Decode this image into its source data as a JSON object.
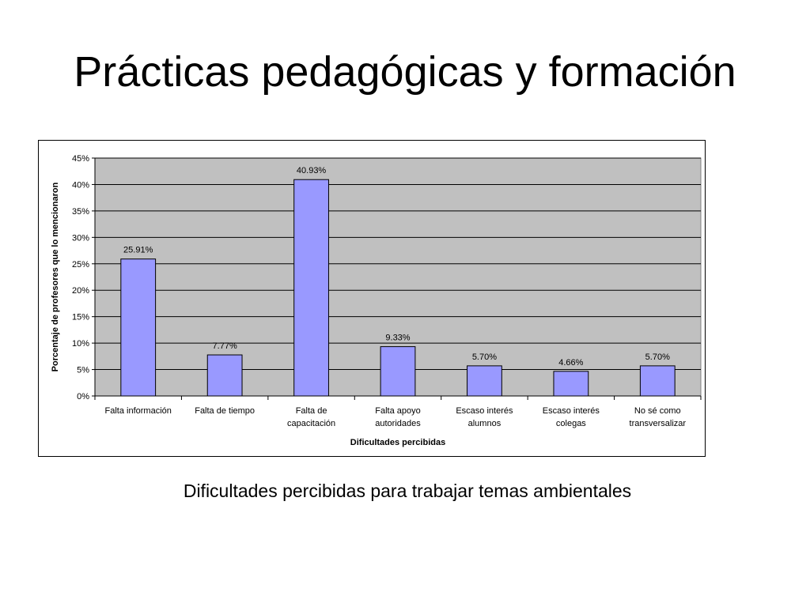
{
  "page": {
    "title": "Prácticas pedagógicas y formación",
    "caption": "Dificultades percibidas para trabajar temas ambientales"
  },
  "chart_data": {
    "type": "bar",
    "categories": [
      [
        "Falta información"
      ],
      [
        "Falta de tiempo"
      ],
      [
        "Falta de",
        "capacitación"
      ],
      [
        "Falta apoyo",
        "autoridades"
      ],
      [
        "Escaso interés",
        "alumnos"
      ],
      [
        "Escaso interés",
        "colegas"
      ],
      [
        "No sé como",
        "transversalizar"
      ]
    ],
    "values": [
      25.91,
      7.77,
      40.93,
      9.33,
      5.7,
      4.66,
      5.7
    ],
    "data_labels": [
      "25.91%",
      "7.77%",
      "40.93%",
      "9.33%",
      "5.70%",
      "4.66%",
      "5.70%"
    ],
    "xlabel": "Dificultades percibidas",
    "ylabel": "Porcentaje de profesores que lo mencionaron",
    "ylim": [
      0,
      45
    ],
    "yticks": [
      0,
      5,
      10,
      15,
      20,
      25,
      30,
      35,
      40,
      45
    ],
    "ytick_labels": [
      "0%",
      "5%",
      "10%",
      "15%",
      "20%",
      "25%",
      "30%",
      "35%",
      "40%",
      "45%"
    ],
    "grid": true,
    "legend": "none",
    "colors": {
      "bar_fill": "#9999ff",
      "bar_stroke": "#000000",
      "plot_background": "#c0c0c0",
      "gridline": "#000000"
    }
  }
}
